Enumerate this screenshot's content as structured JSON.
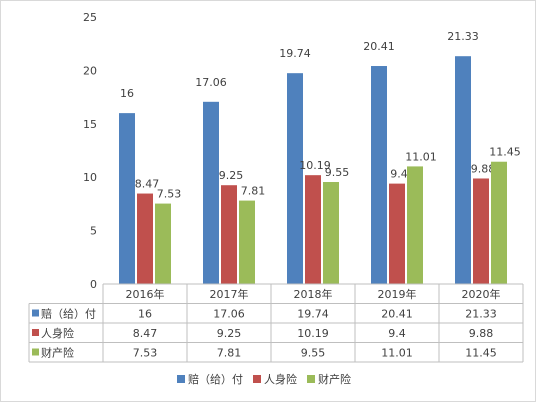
{
  "chart_data": {
    "type": "bar",
    "categories": [
      "2016年",
      "2017年",
      "2018年",
      "2019年",
      "2020年"
    ],
    "series": [
      {
        "name": "赔（给）付",
        "values": [
          16,
          17.06,
          19.74,
          20.41,
          21.33
        ],
        "color": "#4f81bd"
      },
      {
        "name": "人身险",
        "values": [
          8.47,
          9.25,
          10.19,
          9.4,
          9.88
        ],
        "color": "#c0504d"
      },
      {
        "name": "财产险",
        "values": [
          7.53,
          7.81,
          9.55,
          11.01,
          11.45
        ],
        "color": "#9bbb59"
      }
    ],
    "data_labels": [
      [
        "16",
        "17.06",
        "19.74",
        "20.41",
        "21.33"
      ],
      [
        "8.47",
        "9.25",
        "10.19",
        "9.4",
        "9.88"
      ],
      [
        "7.53",
        "7.81",
        "9.55",
        "11.01",
        "11.45"
      ]
    ],
    "ylim": [
      0,
      25
    ],
    "yticks": [
      "0",
      "5",
      "10",
      "15",
      "20",
      "25"
    ],
    "grid": false,
    "data_table": true,
    "legend": "bottom"
  }
}
